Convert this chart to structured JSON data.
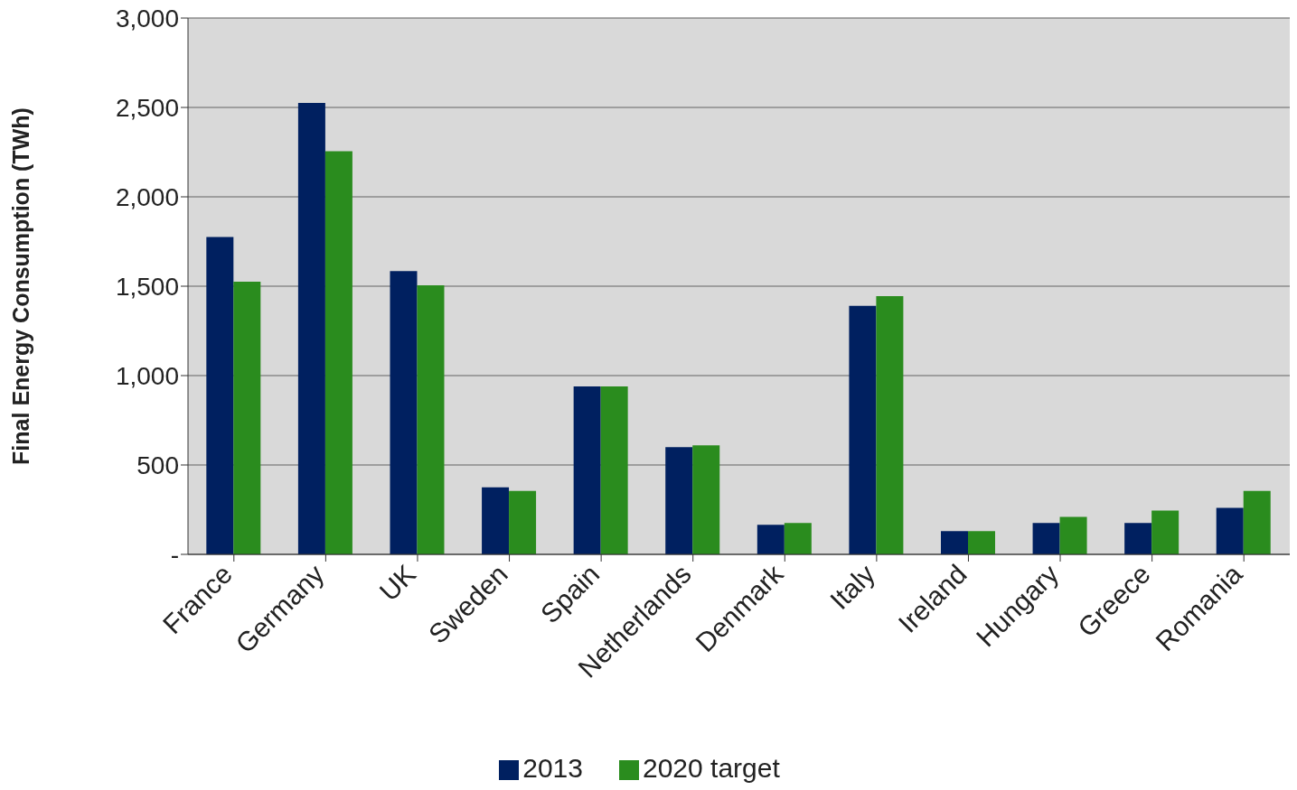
{
  "chart_data": {
    "type": "bar",
    "ylabel": "Final Energy Consumption (TWh)",
    "categories": [
      "France",
      "Germany",
      "UK",
      "Sweden",
      "Spain",
      "Netherlands",
      "Denmark",
      "Italy",
      "Ireland",
      "Hungary",
      "Greece",
      "Romania"
    ],
    "series": [
      {
        "name": "2013",
        "color": "#002060",
        "values": [
          1775,
          2525,
          1585,
          375,
          940,
          600,
          165,
          1390,
          130,
          175,
          175,
          260
        ]
      },
      {
        "name": "2020 target",
        "color": "#2a8c1e",
        "values": [
          1525,
          2255,
          1505,
          355,
          940,
          610,
          175,
          1445,
          130,
          210,
          245,
          355
        ]
      }
    ],
    "ylim": [
      0,
      3000
    ],
    "yticks": [
      {
        "value": 0,
        "label": "-"
      },
      500,
      {
        "value": 1000,
        "label": "1,000"
      },
      {
        "value": 1500,
        "label": "1,500"
      },
      {
        "value": 2000,
        "label": "2,000"
      },
      {
        "value": 2500,
        "label": "2,500"
      },
      {
        "value": 3000,
        "label": "3,000"
      }
    ],
    "grid": "y",
    "legend": "bottom"
  }
}
